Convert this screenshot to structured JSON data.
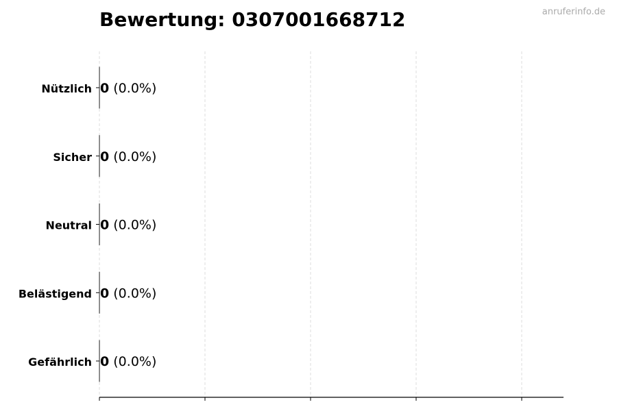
{
  "chart_data": {
    "type": "bar",
    "orientation": "horizontal",
    "title": "Bewertung: 0307001668712",
    "categories": [
      "Nützlich",
      "Sicher",
      "Neutral",
      "Belästigend",
      "Gefährlich"
    ],
    "values": [
      0,
      0,
      0,
      0,
      0
    ],
    "data_labels": [
      {
        "count": "0",
        "percent": "(0.0%)"
      },
      {
        "count": "0",
        "percent": "(0.0%)"
      },
      {
        "count": "0",
        "percent": "(0.0%)"
      },
      {
        "count": "0",
        "percent": "(0.0%)"
      },
      {
        "count": "0",
        "percent": "(0.0%)"
      }
    ],
    "xlabel": "",
    "ylabel": "",
    "x_tick_labels": false,
    "grid": "vertical dashed",
    "colors": {
      "grid": "#dddddd",
      "axis": "#000000",
      "bar_edge": "#333333"
    }
  },
  "watermark": "anruferinfo.de"
}
